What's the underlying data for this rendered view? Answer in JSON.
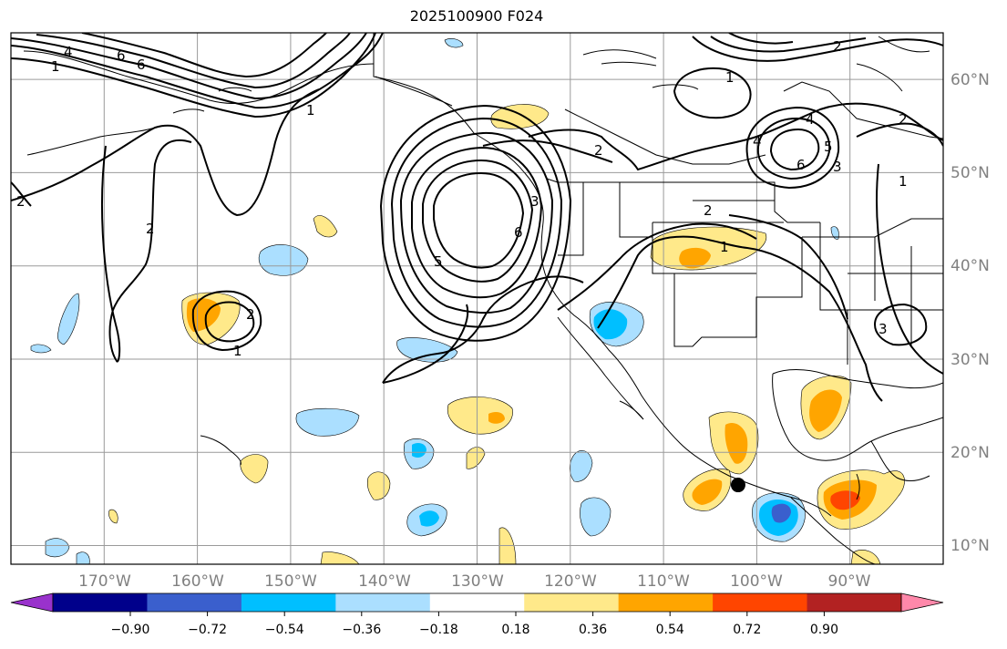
{
  "title": "2025100900 F024",
  "map": {
    "lat_labels": [
      "60°N",
      "50°N",
      "40°N",
      "30°N",
      "20°N",
      "10°N"
    ],
    "lon_labels": [
      "170°W",
      "160°W",
      "150°W",
      "140°W",
      "130°W",
      "120°W",
      "110°W",
      "100°W",
      "90°W"
    ],
    "grid": true,
    "lon_range": [
      -180,
      -80
    ],
    "lat_range": [
      8,
      65
    ],
    "contour_labels": [
      "1",
      "4",
      "6",
      "6",
      "1",
      "2",
      "2",
      "6",
      "5",
      "2",
      "2",
      "1",
      "1",
      "4",
      "4",
      "6",
      "5",
      "3",
      "2",
      "1",
      "2",
      "3",
      "2",
      "1",
      "3"
    ],
    "marker": {
      "name": "black-dot",
      "lon": -102,
      "lat": 16.5
    }
  },
  "colors": {
    "fill_0_18": "#ffe98a",
    "fill_0_36": "#ffa500",
    "fill_0_54": "#ff4500",
    "fill_neg_0_18": "#abdfff",
    "fill_neg_0_36": "#00bfff",
    "fill_neg_0_54": "#3a5fcd"
  },
  "colorbar": {
    "colors": [
      "#9932cc",
      "#00008b",
      "#3a5fcd",
      "#00bfff",
      "#abdfff",
      "#ffffff",
      "#ffe98a",
      "#ffa500",
      "#ff4500",
      "#b22222",
      "#ff88aa"
    ],
    "ticks": [
      "−0.90",
      "−0.72",
      "−0.54",
      "−0.36",
      "−0.18",
      "0.18",
      "0.36",
      "0.54",
      "0.72",
      "0.90"
    ]
  }
}
